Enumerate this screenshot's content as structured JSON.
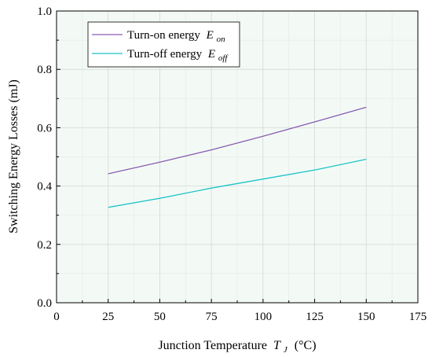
{
  "chart_data": {
    "type": "line",
    "xlabel": "Junction Temperature",
    "xlabel_symbol": "T",
    "xlabel_sub": "J",
    "xlabel_unit": "(°C)",
    "ylabel": "Switching Energy Losses (mJ)",
    "xlim": [
      0,
      175
    ],
    "ylim": [
      0.0,
      1.0
    ],
    "xticks": [
      0,
      25,
      50,
      75,
      100,
      125,
      150,
      175
    ],
    "yticks": [
      0.0,
      0.2,
      0.4,
      0.6,
      0.8,
      1.0
    ],
    "xtick_labels": [
      "0",
      "25",
      "50",
      "75",
      "100",
      "125",
      "150",
      "175"
    ],
    "ytick_labels": [
      "0.0",
      "0.2",
      "0.4",
      "0.6",
      "0.8",
      "1.0"
    ],
    "grid": true,
    "legend_position": "top-left",
    "background_color": "#f3faf6",
    "series": [
      {
        "name": "Turn-on energy",
        "name_symbol": "E",
        "name_sub": "on",
        "color": "#8a5cb0",
        "x": [
          25,
          50,
          75,
          100,
          125,
          150
        ],
        "y": [
          0.442,
          0.482,
          0.524,
          0.571,
          0.62,
          0.67
        ]
      },
      {
        "name": "Turn-off energy",
        "name_symbol": "E",
        "name_sub": "off",
        "color": "#1fc4c8",
        "x": [
          25,
          50,
          75,
          100,
          125,
          150
        ],
        "y": [
          0.327,
          0.358,
          0.393,
          0.424,
          0.455,
          0.492
        ]
      }
    ]
  }
}
